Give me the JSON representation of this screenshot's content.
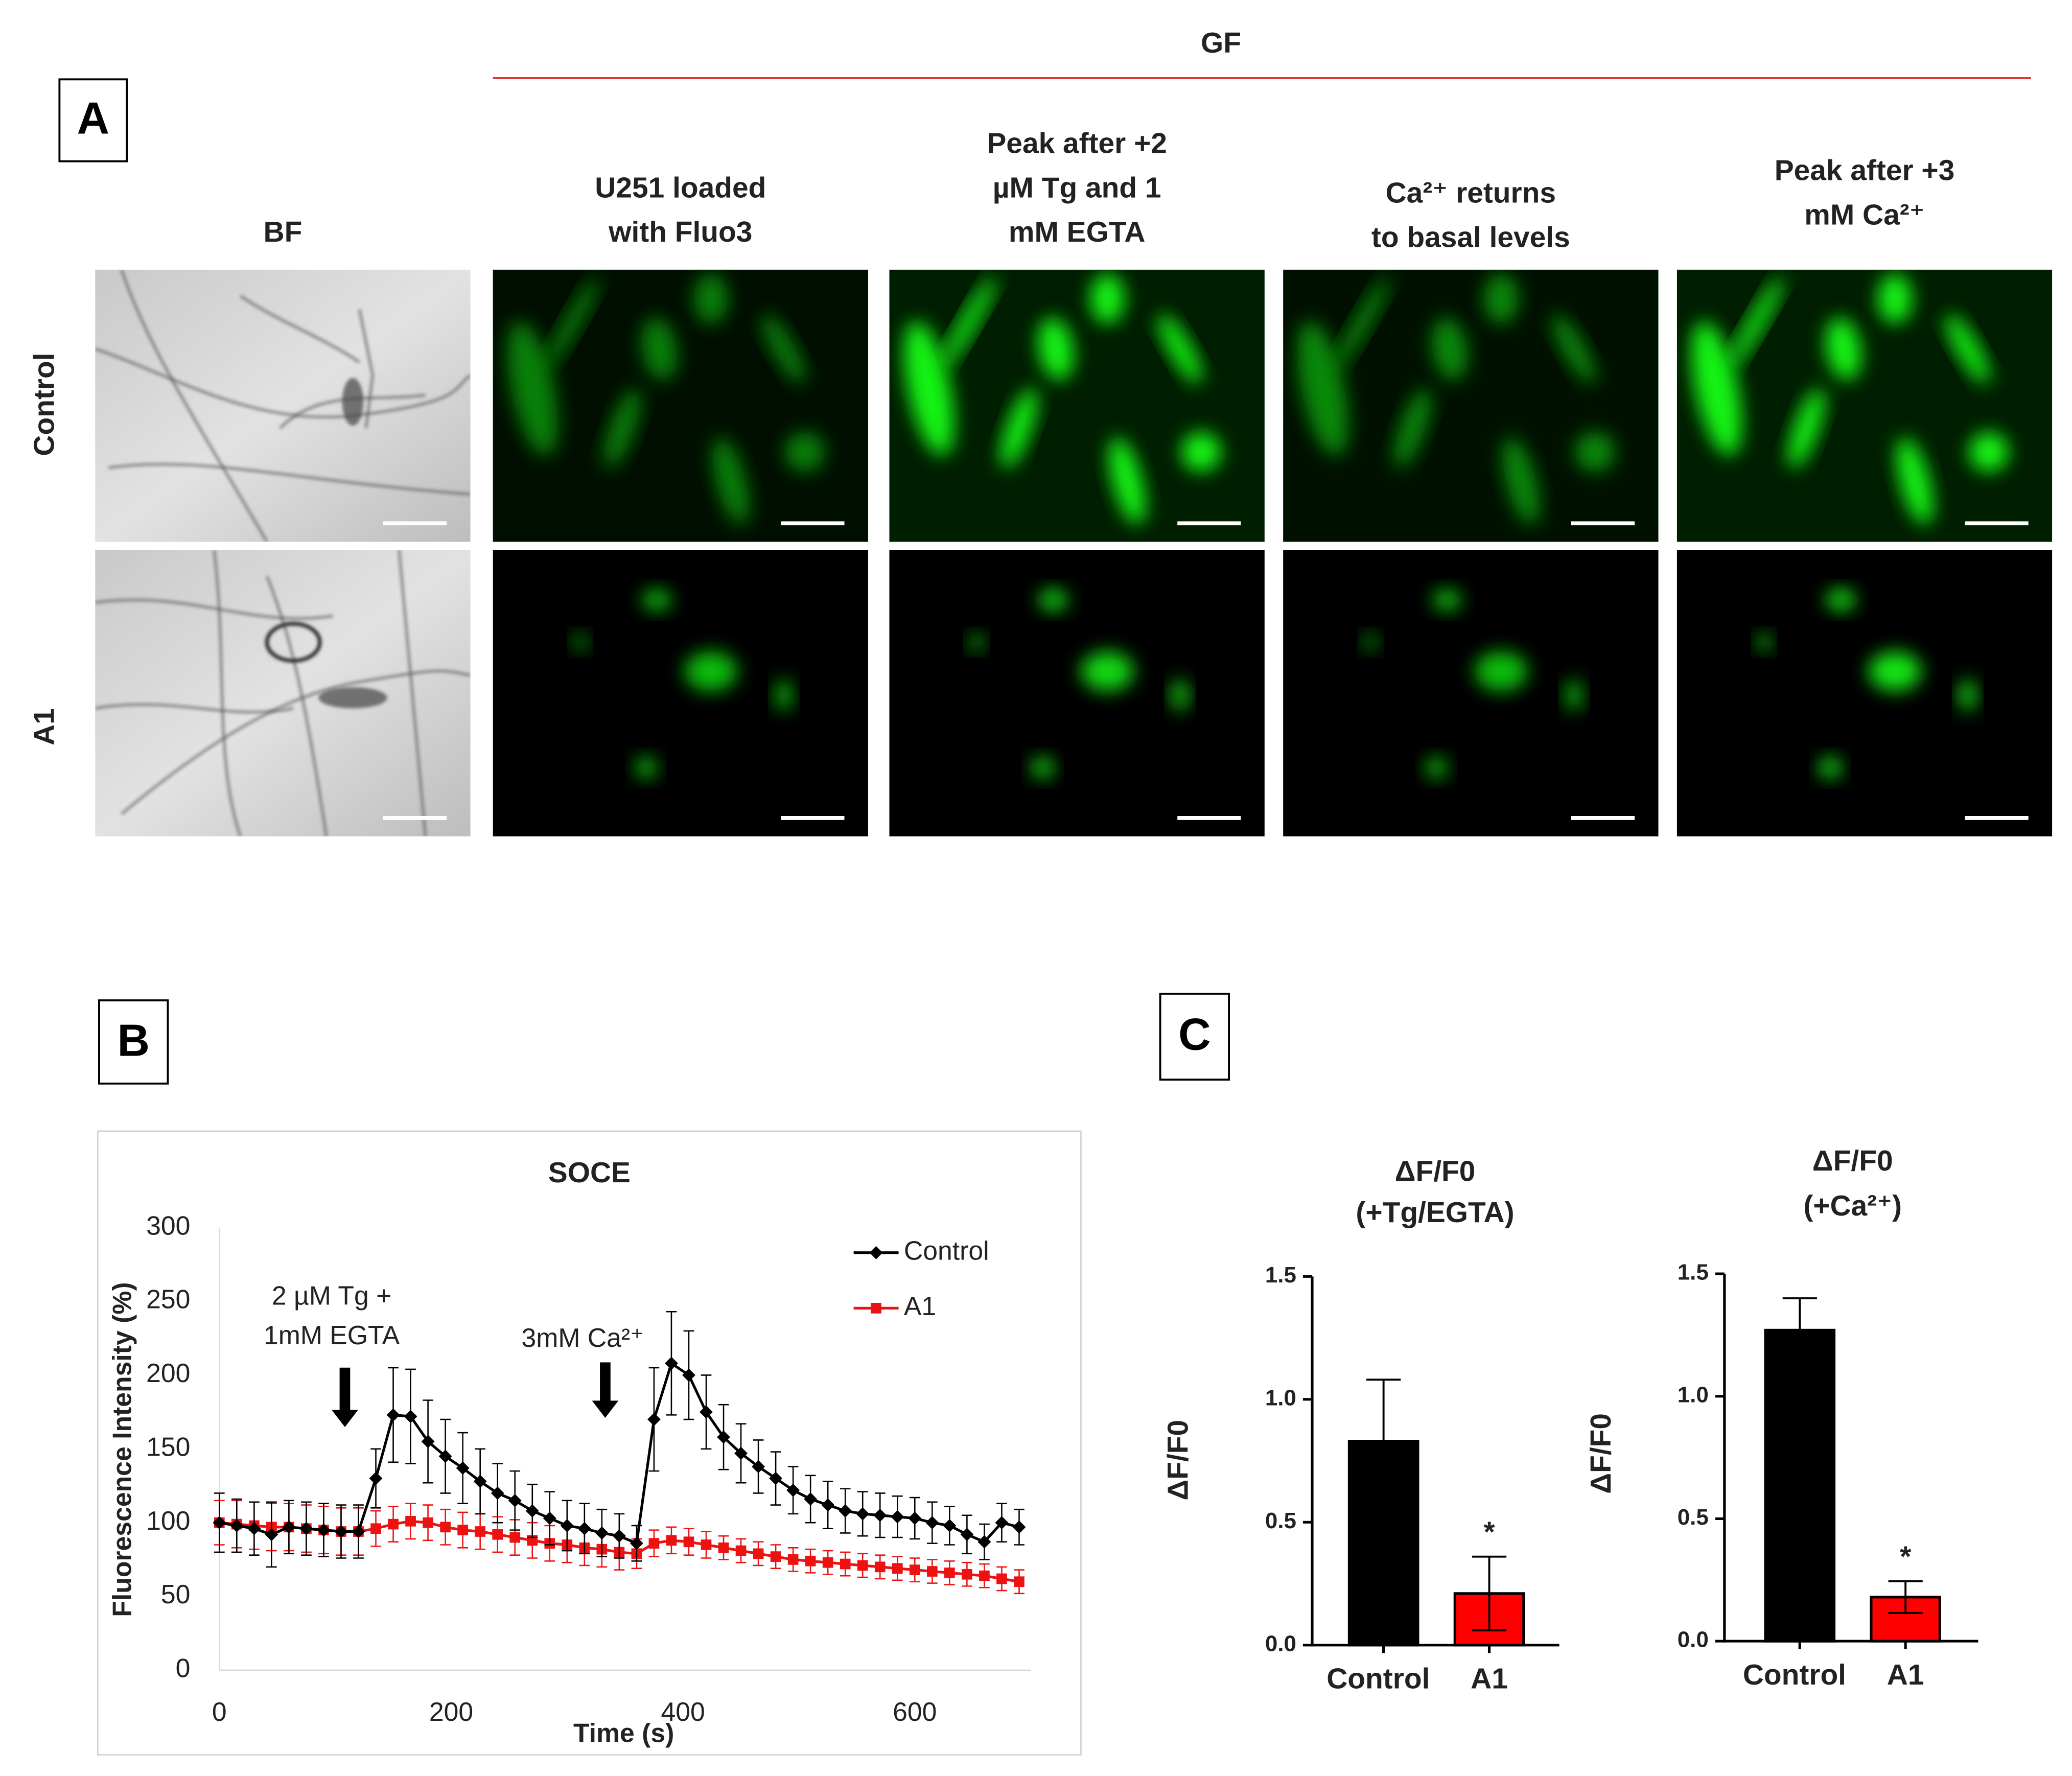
{
  "panel_a": {
    "label": "A",
    "group_header": "GF",
    "columns": [
      [
        "BF"
      ],
      [
        "U251 loaded",
        "with Fluo3"
      ],
      [
        "Peak after +2",
        "µM Tg and 1",
        "mM EGTA"
      ],
      [
        "Ca²⁺ returns",
        "to basal levels"
      ],
      [
        "Peak after +3",
        "mM Ca²⁺"
      ]
    ],
    "rows": [
      "Control",
      "A1"
    ]
  },
  "chart_data": [
    {
      "type": "line",
      "panel_label": "B",
      "title": "SOCE",
      "x_label": "Time (s)",
      "y_label": "Fluorescence Intensity (%)",
      "x": [
        0,
        15,
        30,
        45,
        60,
        75,
        90,
        105,
        120,
        135,
        150,
        165,
        180,
        195,
        210,
        225,
        240,
        255,
        270,
        285,
        300,
        315,
        330,
        345,
        360,
        375,
        390,
        405,
        420,
        435,
        450,
        465,
        480,
        495,
        510,
        525,
        540,
        555,
        570,
        585,
        600,
        615,
        630,
        645,
        660,
        675,
        690
      ],
      "series": [
        {
          "name": "Control",
          "color": "#000000",
          "marker": "diamond",
          "values": [
            100,
            98,
            96,
            92,
            97,
            96,
            95,
            94,
            94,
            130,
            173,
            172,
            155,
            145,
            137,
            128,
            120,
            115,
            108,
            103,
            98,
            96,
            93,
            91,
            86,
            170,
            208,
            200,
            175,
            158,
            147,
            138,
            130,
            122,
            116,
            112,
            108,
            106,
            105,
            104,
            103,
            100,
            98,
            92,
            87,
            100,
            97
          ],
          "errors": [
            20,
            18,
            18,
            22,
            18,
            18,
            18,
            18,
            18,
            20,
            32,
            32,
            28,
            25,
            24,
            22,
            20,
            20,
            18,
            18,
            17,
            17,
            16,
            15,
            12,
            35,
            35,
            30,
            25,
            22,
            20,
            18,
            18,
            16,
            16,
            16,
            15,
            15,
            15,
            14,
            14,
            14,
            13,
            13,
            12,
            13,
            12
          ]
        },
        {
          "name": "A1",
          "color": "#ee1111",
          "marker": "square",
          "values": [
            100,
            99,
            98,
            97,
            97,
            96,
            95,
            94,
            94,
            96,
            99,
            101,
            100,
            97,
            95,
            94,
            92,
            90,
            88,
            86,
            85,
            83,
            82,
            80,
            79,
            86,
            88,
            87,
            85,
            83,
            81,
            79,
            77,
            75,
            74,
            73,
            72,
            71,
            70,
            69,
            68,
            67,
            66,
            65,
            64,
            62,
            60
          ],
          "errors": [
            15,
            16,
            16,
            16,
            16,
            16,
            16,
            16,
            16,
            12,
            12,
            12,
            12,
            12,
            12,
            12,
            12,
            12,
            12,
            12,
            12,
            12,
            12,
            12,
            10,
            9,
            9,
            9,
            9,
            8,
            8,
            8,
            8,
            8,
            8,
            8,
            8,
            8,
            8,
            8,
            8,
            8,
            8,
            8,
            8,
            8,
            8
          ]
        }
      ],
      "xlim": [
        0,
        700
      ],
      "xticks": [
        0,
        200,
        400,
        600
      ],
      "ylim": [
        0,
        300
      ],
      "yticks": [
        0,
        50,
        100,
        150,
        200,
        250,
        300
      ],
      "grid": false,
      "legend": "top-right",
      "annotations": [
        "2 µM Tg +",
        "1mM EGTA",
        "3mM Ca²⁺"
      ]
    },
    {
      "type": "bar",
      "panel_label": "C",
      "title": [
        "ΔF/F0",
        "(+Tg/EGTA)"
      ],
      "y_label": "ΔF/F0",
      "categories": [
        "Control",
        "A1"
      ],
      "values": [
        0.83,
        0.21
      ],
      "errors": [
        0.25,
        0.15
      ],
      "colors": [
        "#000000",
        "#ff0000"
      ],
      "significance_labels": [
        null,
        "*"
      ],
      "ylim": [
        0,
        1.5
      ],
      "yticks": [
        {
          "value": 0,
          "label": "0.0"
        },
        0.5,
        {
          "value": 1,
          "label": "1.0"
        },
        1.5
      ]
    },
    {
      "type": "bar",
      "title": [
        "ΔF/F0",
        "(+Ca²⁺)"
      ],
      "y_label": "ΔF/F0",
      "categories": [
        "Control",
        "A1"
      ],
      "values": [
        1.27,
        0.18
      ],
      "errors": [
        0.13,
        0.065
      ],
      "colors": [
        "#000000",
        "#ff0000"
      ],
      "significance_labels": [
        null,
        "*"
      ],
      "ylim": [
        0,
        1.5
      ],
      "yticks": [
        {
          "value": 0,
          "label": "0.0"
        },
        0.5,
        {
          "value": 1,
          "label": "1.0"
        },
        1.5
      ]
    }
  ]
}
